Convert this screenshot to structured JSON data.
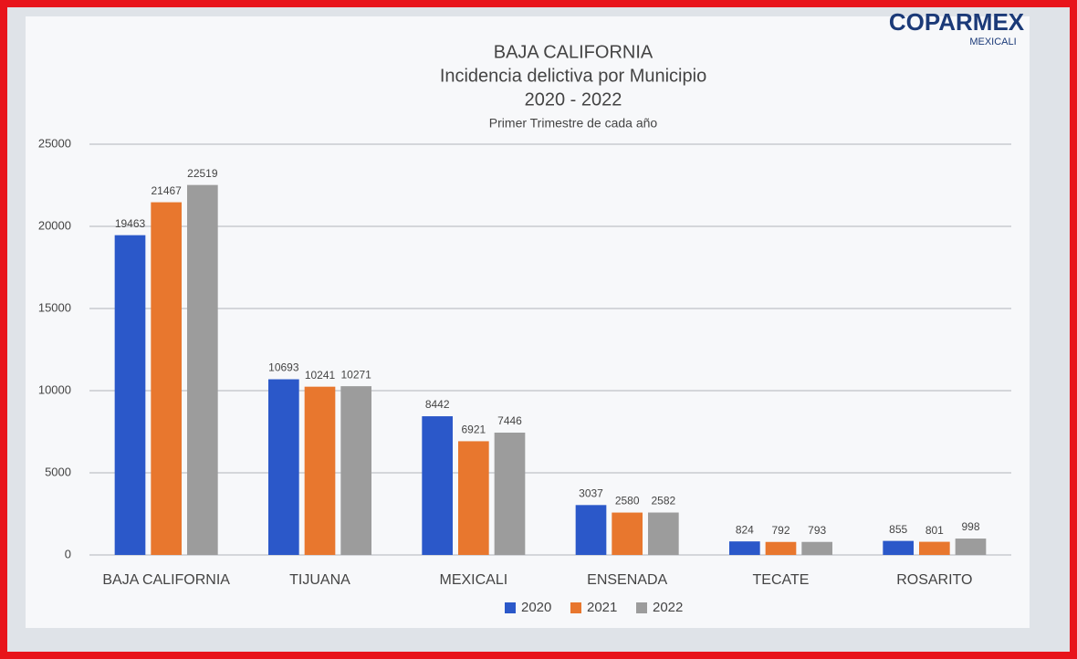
{
  "logo": {
    "name": "COPARMEX",
    "city": "MEXICALI"
  },
  "chart_data": {
    "type": "bar",
    "title": [
      "BAJA CALIFORNIA",
      "Incidencia delictiva por Municipio",
      "2020 - 2022"
    ],
    "subtitle": "Primer Trimestre de cada año",
    "categories": [
      "BAJA CALIFORNIA",
      "TIJUANA",
      "MEXICALI",
      "ENSENADA",
      "TECATE",
      "ROSARITO"
    ],
    "series": [
      {
        "name": "2020",
        "color": "#2b58c9",
        "values": [
          19463,
          10693,
          8442,
          3037,
          824,
          855
        ]
      },
      {
        "name": "2021",
        "color": "#e8772e",
        "values": [
          21467,
          10241,
          6921,
          2580,
          792,
          801
        ]
      },
      {
        "name": "2022",
        "color": "#9c9c9c",
        "values": [
          22519,
          10271,
          7446,
          2582,
          793,
          998
        ]
      }
    ],
    "ylim": [
      0,
      25000
    ],
    "yticks": [
      0,
      5000,
      10000,
      15000,
      20000,
      25000
    ],
    "grid": true
  }
}
